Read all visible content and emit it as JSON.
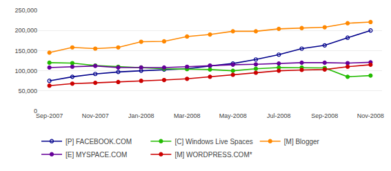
{
  "chart_data": {
    "type": "line",
    "categories": [
      "Sep-2007",
      null,
      "Nov-2007",
      null,
      "Jan-2008",
      null,
      "Mar-2008",
      null,
      "May-2008",
      null,
      "Jul-2008",
      null,
      "Sep-2008",
      null,
      "Nov-2008"
    ],
    "series": [
      {
        "name": "[P] FACEBOOK.COM",
        "color": "#00008B",
        "marker": "circle-open",
        "values": [
          75000,
          85000,
          92000,
          97000,
          100000,
          103000,
          105000,
          112000,
          118000,
          128000,
          140000,
          155000,
          163000,
          182000,
          200000
        ]
      },
      {
        "name": "[C] Windows Live Spaces",
        "color": "#22bb00",
        "marker": "circle",
        "values": [
          120000,
          119000,
          113000,
          110000,
          108000,
          105000,
          104000,
          103000,
          100000,
          105000,
          108000,
          108000,
          107000,
          85000,
          88000
        ]
      },
      {
        "name": "[M] Blogger",
        "color": "#ff8800",
        "marker": "circle",
        "values": [
          145000,
          158000,
          155000,
          158000,
          172000,
          173000,
          185000,
          190000,
          198000,
          198000,
          204000,
          206000,
          208000,
          218000,
          221000
        ]
      },
      {
        "name": "[E] MYSPACE.COM",
        "color": "#660099",
        "marker": "circle",
        "values": [
          108000,
          110000,
          112000,
          108000,
          108000,
          108000,
          110000,
          113000,
          115000,
          116000,
          118000,
          120000,
          120000,
          119000,
          121000
        ]
      },
      {
        "name": "[M] WORDPRESS.COM*",
        "color": "#cc0000",
        "marker": "circle",
        "values": [
          63000,
          68000,
          70000,
          72000,
          75000,
          77000,
          80000,
          85000,
          90000,
          95000,
          100000,
          102000,
          103000,
          110000,
          115000
        ]
      }
    ],
    "ylim": [
      0,
      250000
    ],
    "yticks": [
      0,
      {
        "value": 50000,
        "label": "50,000"
      },
      {
        "value": 100000,
        "label": "100,000"
      },
      {
        "value": 150000,
        "label": "150,000"
      },
      {
        "value": 200000,
        "label": "200,000"
      },
      {
        "value": 250000,
        "label": "250,000"
      }
    ],
    "grid": true,
    "legend": "bottom"
  }
}
